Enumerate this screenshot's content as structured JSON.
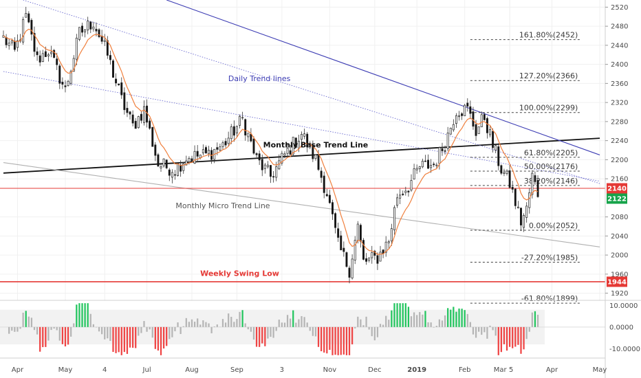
{
  "chart_data": {
    "type": "line",
    "price_axis": {
      "ylim": [
        1905,
        2535
      ],
      "ticks": [
        "2520",
        "2480",
        "2440",
        "2400",
        "2360",
        "2320",
        "2280",
        "2240",
        "2200",
        "2160",
        "2080",
        "2040",
        "2000",
        "1960",
        "1920"
      ]
    },
    "osc_axis": {
      "ylim": [
        -14,
        12
      ],
      "ticks": [
        "10.0000",
        "0.0000",
        "-10.0000"
      ]
    },
    "x_axis": {
      "labels": [
        {
          "label": "Apr",
          "bar": 5
        },
        {
          "label": "May",
          "bar": 22
        },
        {
          "label": "4",
          "bar": 36
        },
        {
          "label": "Jul",
          "bar": 51
        },
        {
          "label": "Aug",
          "bar": 67
        },
        {
          "label": "Sep",
          "bar": 83
        },
        {
          "label": "3",
          "bar": 99
        },
        {
          "label": "Nov",
          "bar": 116
        },
        {
          "label": "Dec",
          "bar": 132
        },
        {
          "label": "2019",
          "bar": 147,
          "bold": true
        },
        {
          "label": "Feb",
          "bar": 164
        },
        {
          "label": "Mar",
          "bar": 180
        },
        {
          "label": "5",
          "bar": 180
        },
        {
          "label": "Apr",
          "bar": 195
        },
        {
          "label": "May",
          "bar": 212
        }
      ]
    },
    "close_anchors": [
      [
        0,
        2455
      ],
      [
        4,
        2425
      ],
      [
        8,
        2500
      ],
      [
        12,
        2410
      ],
      [
        16,
        2430
      ],
      [
        22,
        2345
      ],
      [
        27,
        2465
      ],
      [
        32,
        2490
      ],
      [
        37,
        2420
      ],
      [
        42,
        2325
      ],
      [
        46,
        2270
      ],
      [
        50,
        2305
      ],
      [
        55,
        2190
      ],
      [
        61,
        2180
      ],
      [
        65,
        2205
      ],
      [
        72,
        2210
      ],
      [
        78,
        2230
      ],
      [
        85,
        2285
      ],
      [
        90,
        2200
      ],
      [
        95,
        2165
      ],
      [
        100,
        2210
      ],
      [
        106,
        2255
      ],
      [
        111,
        2200
      ],
      [
        115,
        2130
      ],
      [
        119,
        2020
      ],
      [
        123,
        1970
      ],
      [
        126,
        2060
      ],
      [
        128,
        1985
      ],
      [
        133,
        1995
      ],
      [
        137,
        2030
      ],
      [
        140,
        2125
      ],
      [
        144,
        2145
      ],
      [
        148,
        2185
      ],
      [
        153,
        2190
      ],
      [
        157,
        2235
      ],
      [
        161,
        2305
      ],
      [
        165,
        2305
      ],
      [
        168,
        2260
      ],
      [
        171,
        2290
      ],
      [
        174,
        2230
      ],
      [
        177,
        2180
      ],
      [
        180,
        2150
      ],
      [
        184,
        2070
      ],
      [
        186,
        2095
      ],
      [
        188,
        2165
      ],
      [
        190,
        2130
      ]
    ],
    "fib_levels": [
      {
        "label": "161.80%(2452)",
        "value": 2452
      },
      {
        "label": "127.20%(2366)",
        "value": 2366
      },
      {
        "label": "100.00%(2299)",
        "value": 2299
      },
      {
        "label": "61.80%(2205)",
        "value": 2205
      },
      {
        "label": "50.00%(2176)",
        "value": 2176
      },
      {
        "label": "38.20%(2146)",
        "value": 2146
      },
      {
        "label": "0.00%(2052)",
        "value": 2052
      },
      {
        "label": "-27.20%(1985)",
        "value": 1985
      },
      {
        "label": "-61.80%(1899)",
        "value": 1899
      }
    ],
    "horizontal_lines": [
      {
        "value": 2140,
        "color": "#e53935"
      },
      {
        "value": 1944,
        "color": "#e53935"
      }
    ],
    "price_badges": [
      {
        "text": "2140",
        "value": 2140,
        "color": "#e53935"
      },
      {
        "text": "2122",
        "value": 2122,
        "color": "#16a34a"
      },
      {
        "text": "1944",
        "value": 1944,
        "color": "#e53935"
      }
    ],
    "trend_lines": [
      {
        "name": "Monthly Base Trend Line",
        "from": [
          0,
          2172
        ],
        "to": [
          212,
          2245
        ],
        "color": "#111111",
        "style": "solid"
      },
      {
        "name": "Monthly Micro Trend Line",
        "from": [
          0,
          2194
        ],
        "to": [
          212,
          2017
        ],
        "color": "#b0b0b0",
        "style": "solid"
      },
      {
        "name": "Daily Trend line upper",
        "from": [
          58,
          2535
        ],
        "to": [
          212,
          2210
        ],
        "color": "#3b3bb3",
        "style": "solid"
      },
      {
        "name": "Daily Trend line dotted 1",
        "from": [
          7,
          2535
        ],
        "to": [
          212,
          2150
        ],
        "color": "#6a6ad0",
        "style": "dotted"
      },
      {
        "name": "Daily Trend line dotted 2",
        "from": [
          0,
          2385
        ],
        "to": [
          212,
          2155
        ],
        "color": "#6a6ad0",
        "style": "dotted"
      }
    ],
    "annotations": [
      {
        "text": "Daily Trend lines",
        "bar": 91,
        "value": 2365,
        "color": "#3b3bb3",
        "bold": false
      },
      {
        "text": "Monthly Base Trend Line",
        "bar": 111,
        "value": 2226,
        "color": "#111111",
        "bold": true
      },
      {
        "text": "Monthly Micro Trend Line",
        "bar": 78,
        "value": 2098,
        "color": "#555555",
        "bold": false
      },
      {
        "text": "Weekly Swing Low",
        "bar": 84,
        "value": 1956,
        "color": "#e53935",
        "bold": true
      }
    ],
    "oscillator": {
      "band": [
        -8,
        8
      ],
      "positive_color": "#22c55e",
      "negative_color": "#ef4444",
      "neutral_color": "#b5b5b5",
      "highlight_threshold": 7
    },
    "colors": {
      "up": "#3a3a3a",
      "down": "#111111",
      "ema": "#f07f3c",
      "grid": "#f0f0f0"
    }
  }
}
